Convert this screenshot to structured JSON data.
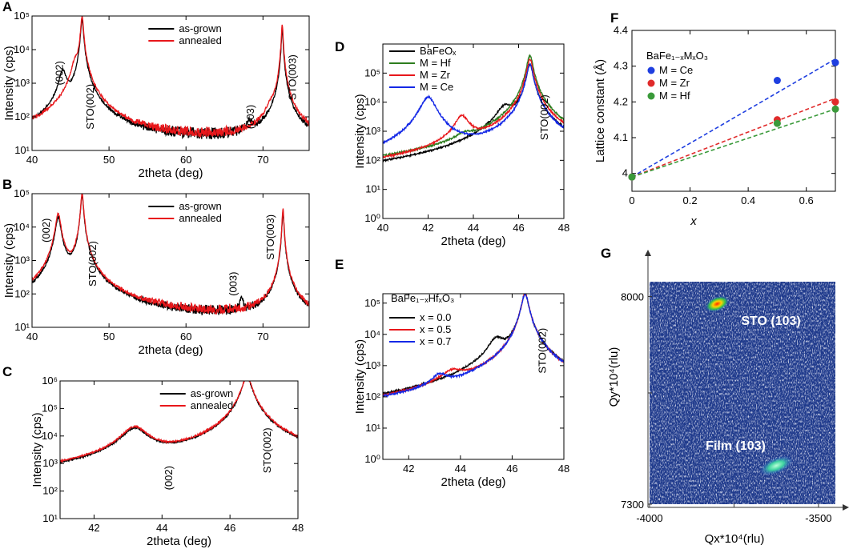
{
  "colors": {
    "black": "#000000",
    "red": "#e8171b",
    "darkred": "#b5161b",
    "blue": "#1428e6",
    "green": "#2e7d1f",
    "ceDot": "#1f3fe0",
    "zrDot": "#e02b2b",
    "hfDot": "#3a9a3a"
  },
  "chart_data": [
    {
      "id": "A",
      "type": "line",
      "label": "A",
      "xlabel": "2theta (deg)",
      "ylabel": "Intensity (cps)",
      "xlim": [
        40,
        76
      ],
      "ylim": [
        10,
        100000
      ],
      "yscale": "log",
      "xticks": [
        "40",
        "50",
        "60",
        "70"
      ],
      "yticks": [
        {
          "e": 1,
          "label": "10¹"
        },
        {
          "e": 2,
          "label": "10²"
        },
        {
          "e": 3,
          "label": "10³"
        },
        {
          "e": 4,
          "label": "10⁴"
        },
        {
          "e": 5,
          "label": "10⁵"
        }
      ],
      "legend": [
        "as-grown",
        "annealed"
      ],
      "series": [
        {
          "name": "as-grown",
          "color": "black",
          "base": 18,
          "peaks": [
            [
              44.0,
              2200,
              0.45
            ],
            [
              46.5,
              80000,
              0.15
            ],
            [
              68.2,
              35,
              0.4
            ],
            [
              72.5,
              40000,
              0.1
            ]
          ]
        },
        {
          "name": "annealed",
          "color": "red",
          "base": 17,
          "peaks": [
            [
              45.6,
              3500,
              0.4
            ],
            [
              46.5,
              100000,
              0.15
            ],
            [
              71.0,
              90,
              0.4
            ],
            [
              72.5,
              55000,
              0.1
            ]
          ]
        }
      ],
      "annotations": [
        {
          "text": "(002)",
          "x": 44.0,
          "y": 2000,
          "rot": true
        },
        {
          "text": "STO(002)",
          "x": 48.0,
          "y": 200,
          "rot": true
        },
        {
          "text": "(003)",
          "x": 68.8,
          "y": 100,
          "rot": true
        },
        {
          "text": "STO(003)",
          "x": 74.3,
          "y": 1500,
          "rot": true
        }
      ]
    },
    {
      "id": "B",
      "type": "line",
      "label": "B",
      "xlabel": "2theta (deg)",
      "ylabel": "Intensity (cps)",
      "xlim": [
        40,
        76
      ],
      "ylim": [
        10,
        100000
      ],
      "yscale": "log",
      "xticks": [
        "40",
        "50",
        "60",
        "70"
      ],
      "yticks": [
        {
          "e": 1,
          "label": "10¹"
        },
        {
          "e": 2,
          "label": "10²"
        },
        {
          "e": 3,
          "label": "10³"
        },
        {
          "e": 4,
          "label": "10⁴"
        },
        {
          "e": 5,
          "label": "10⁵"
        }
      ],
      "legend": [
        "as-grown",
        "annealed"
      ],
      "series": [
        {
          "name": "as-grown",
          "color": "black",
          "base": 16,
          "peaks": [
            [
              43.4,
              20000,
              0.3
            ],
            [
              46.5,
              90000,
              0.15
            ],
            [
              67.2,
              50,
              0.2
            ],
            [
              72.6,
              30000,
              0.1
            ]
          ]
        },
        {
          "name": "annealed",
          "color": "red",
          "base": 16,
          "peaks": [
            [
              43.4,
              25000,
              0.3
            ],
            [
              46.5,
              100000,
              0.15
            ],
            [
              72.6,
              35000,
              0.1
            ]
          ]
        }
      ],
      "annotations": [
        {
          "text": "(002)",
          "x": 42.3,
          "y": 8000,
          "rot": true
        },
        {
          "text": "STO(002)",
          "x": 48.3,
          "y": 800,
          "rot": true
        },
        {
          "text": "(003)",
          "x": 66.6,
          "y": 200,
          "rot": true
        },
        {
          "text": "STO(003)",
          "x": 71.4,
          "y": 5000,
          "rot": true
        }
      ]
    },
    {
      "id": "C",
      "type": "line",
      "label": "C",
      "xlabel": "2theta (deg)",
      "ylabel": "Intensity (cps)",
      "xlim": [
        41,
        48
      ],
      "ylim": [
        10,
        1000000
      ],
      "yscale": "log",
      "xticks": [
        "42",
        "44",
        "46",
        "48"
      ],
      "yticks": [
        {
          "e": 1,
          "label": "10¹"
        },
        {
          "e": 2,
          "label": "10²"
        },
        {
          "e": 3,
          "label": "10³"
        },
        {
          "e": 4,
          "label": "10⁴"
        },
        {
          "e": 5,
          "label": "10⁵"
        },
        {
          "e": 6,
          "label": "10⁶"
        }
      ],
      "legend": [
        "as-grown",
        "annealed"
      ],
      "series": [
        {
          "name": "as-grown",
          "color": "black",
          "base": 18,
          "peaks": [
            [
              43.2,
              18000,
              0.35
            ],
            [
              46.5,
              1400000,
              0.12
            ]
          ]
        },
        {
          "name": "annealed",
          "color": "red",
          "base": 20,
          "peaks": [
            [
              43.2,
              20000,
              0.35
            ],
            [
              46.5,
              1500000,
              0.12
            ]
          ]
        }
      ],
      "annotations": [
        {
          "text": "(002)",
          "x": 44.3,
          "y": 300,
          "rot": true
        },
        {
          "text": "STO(002)",
          "x": 47.2,
          "y": 3000,
          "rot": true
        }
      ]
    },
    {
      "id": "D",
      "type": "line",
      "label": "D",
      "xlabel": "2theta (deg)",
      "ylabel": "Intensity (cps)",
      "xlim": [
        40,
        48
      ],
      "ylim": [
        1,
        1000000
      ],
      "yscale": "log",
      "xticks": [
        "40",
        "42",
        "44",
        "46",
        "48"
      ],
      "yticks": [
        {
          "e": 0,
          "label": "10⁰"
        },
        {
          "e": 1,
          "label": "10¹"
        },
        {
          "e": 2,
          "label": "10²"
        },
        {
          "e": 3,
          "label": "10³"
        },
        {
          "e": 4,
          "label": "10⁴"
        },
        {
          "e": 5,
          "label": "10⁵"
        }
      ],
      "legend": [
        "BaFeOₓ",
        "M = Hf",
        "M = Zr",
        "M = Ce"
      ],
      "series": [
        {
          "name": "BaFeOx",
          "color": "black",
          "base": 4,
          "peaks": [
            [
              45.4,
              6000,
              0.35
            ],
            [
              46.5,
              200000,
              0.12
            ]
          ]
        },
        {
          "name": "M = Hf",
          "color": "green",
          "base": 5,
          "peaks": [
            [
              43.6,
              300,
              0.35
            ],
            [
              46.5,
              400000,
              0.12
            ]
          ]
        },
        {
          "name": "M = Zr",
          "color": "red",
          "base": 4,
          "peaks": [
            [
              43.5,
              3000,
              0.3
            ],
            [
              46.5,
              300000,
              0.12
            ]
          ]
        },
        {
          "name": "M = Ce",
          "color": "blue",
          "base": 4,
          "peaks": [
            [
              42.0,
              15000,
              0.3
            ],
            [
              46.5,
              200000,
              0.12
            ]
          ]
        }
      ],
      "annotations": [
        {
          "text": "STO(002)",
          "x": 47.3,
          "y": 3000,
          "rot": true
        }
      ]
    },
    {
      "id": "E",
      "type": "line",
      "label": "E",
      "xlabel": "2theta (deg)",
      "ylabel": "Intensity (cps)",
      "xlim": [
        41,
        48
      ],
      "ylim": [
        1,
        200000
      ],
      "yscale": "log",
      "xticks": [
        "42",
        "44",
        "46",
        "48"
      ],
      "yticks": [
        {
          "e": 0,
          "label": "10⁰"
        },
        {
          "e": 1,
          "label": "10¹"
        },
        {
          "e": 2,
          "label": "10²"
        },
        {
          "e": 3,
          "label": "10³"
        },
        {
          "e": 4,
          "label": "10⁴"
        },
        {
          "e": 5,
          "label": "10⁵"
        }
      ],
      "legend_title": "BaFe₁₋ₓHfₓO₃",
      "legend": [
        "x = 0.0",
        "x = 0.5",
        "x = 0.7"
      ],
      "series": [
        {
          "name": "x = 0.0",
          "color": "black",
          "base": 4,
          "peaks": [
            [
              45.4,
              6000,
              0.3
            ],
            [
              46.5,
              200000,
              0.12
            ]
          ]
        },
        {
          "name": "x = 0.5",
          "color": "red",
          "base": 5,
          "peaks": [
            [
              43.7,
              400,
              0.45
            ],
            [
              46.5,
              200000,
              0.12
            ]
          ]
        },
        {
          "name": "x = 0.7",
          "color": "blue",
          "base": 5,
          "peaks": [
            [
              43.2,
              300,
              0.3
            ],
            [
              46.5,
              200000,
              0.12
            ]
          ]
        }
      ],
      "annotations": [
        {
          "text": "STO(002)",
          "x": 47.3,
          "y": 3000,
          "rot": true
        }
      ]
    },
    {
      "id": "F",
      "type": "scatter",
      "label": "F",
      "xlabel": "x",
      "ylabel": "Lattice constant (Å)",
      "xlim": [
        0,
        0.7
      ],
      "ylim": [
        3.95,
        4.4
      ],
      "xticks": [
        {
          "v": 0,
          "label": "0"
        },
        {
          "v": 0.2,
          "label": "0.2"
        },
        {
          "v": 0.4,
          "label": "0.4"
        },
        {
          "v": 0.6,
          "label": "0.6"
        }
      ],
      "yticks": [
        {
          "v": 4.0,
          "label": "4"
        },
        {
          "v": 4.1,
          "label": "4.1"
        },
        {
          "v": 4.2,
          "label": "4.2"
        },
        {
          "v": 4.3,
          "label": "4.3"
        },
        {
          "v": 4.4,
          "label": "4.4"
        }
      ],
      "legend_title": "BaFe₁₋ₓMₓO₃",
      "legend": [
        "M = Ce",
        "M = Zr",
        "M = Hf"
      ],
      "series": [
        {
          "name": "M = Ce",
          "color": "ceDot",
          "points": [
            [
              0,
              3.99
            ],
            [
              0.5,
              4.26
            ],
            [
              0.7,
              4.31
            ]
          ],
          "fit": [
            [
              0,
              3.99
            ],
            [
              0.7,
              4.32
            ]
          ]
        },
        {
          "name": "M = Zr",
          "color": "zrDot",
          "points": [
            [
              0,
              3.99
            ],
            [
              0.5,
              4.15
            ],
            [
              0.7,
              4.2
            ]
          ],
          "fit": [
            [
              0,
              3.99
            ],
            [
              0.7,
              4.21
            ]
          ]
        },
        {
          "name": "M = Hf",
          "color": "hfDot",
          "points": [
            [
              0,
              3.99
            ],
            [
              0.5,
              4.14
            ],
            [
              0.7,
              4.18
            ]
          ],
          "fit": [
            [
              0,
              3.99
            ],
            [
              0.7,
              4.18
            ]
          ]
        }
      ]
    },
    {
      "id": "G",
      "type": "heatmap",
      "label": "G",
      "xlabel": "Qx*10⁴(rlu)",
      "ylabel": "Qy*10⁴(rlu)",
      "xlim": [
        -4000,
        -3450
      ],
      "ylim": [
        7300,
        8050
      ],
      "xticks": [
        {
          "v": -4000,
          "label": "-4000"
        },
        {
          "v": -3500,
          "label": "-3500"
        }
      ],
      "yticks": [
        {
          "v": 7300,
          "label": "7300"
        },
        {
          "v": 8000,
          "label": "8000"
        }
      ],
      "spots": [
        {
          "name": "STO (103)",
          "qx": -3800,
          "qy": 7975,
          "text": "STO (103)"
        },
        {
          "name": "Film (103)",
          "qx": -3625,
          "qy": 7430,
          "text": "Film (103)"
        }
      ]
    }
  ]
}
